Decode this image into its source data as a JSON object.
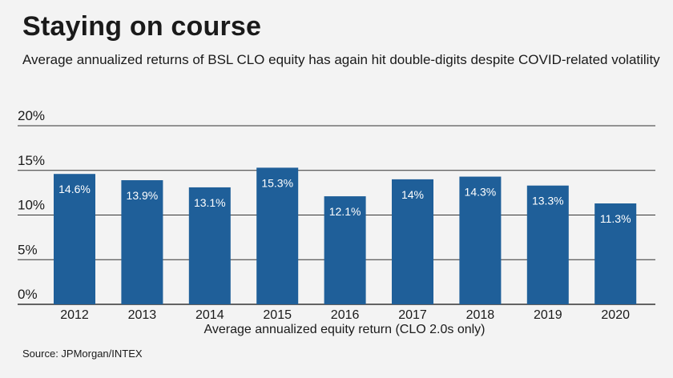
{
  "header": {
    "title": "Staying on course",
    "subtitle": "Average annualized returns of BSL CLO equity has again hit double-digits despite COVID-related volatility"
  },
  "footer": {
    "source": "Source: JPMorgan/INTEX"
  },
  "colors": {
    "bar": "#1f5f99",
    "grid": "#333333",
    "background": "#f3f3f3"
  },
  "chart_data": {
    "type": "bar",
    "title": "Staying on course",
    "subtitle": "Average annualized returns of BSL CLO equity has again hit double-digits despite COVID-related volatility",
    "xlabel": "Average annualized equity return (CLO 2.0s only)",
    "ylabel": "",
    "categories": [
      "2012",
      "2013",
      "2014",
      "2015",
      "2016",
      "2017",
      "2018",
      "2019",
      "2020"
    ],
    "values": [
      14.6,
      13.9,
      13.1,
      15.3,
      12.1,
      14,
      14.3,
      13.3,
      11.3
    ],
    "data_labels": [
      "14.6%",
      "13.9%",
      "13.1%",
      "15.3%",
      "12.1%",
      "14%",
      "14.3%",
      "13.3%",
      "11.3%"
    ],
    "yticks": [
      0,
      5,
      10,
      15,
      20
    ],
    "ytick_labels": [
      "0%",
      "5%",
      "10%",
      "15%",
      "20%"
    ],
    "ylim": [
      0,
      20
    ],
    "grid": true,
    "legend": "none"
  }
}
